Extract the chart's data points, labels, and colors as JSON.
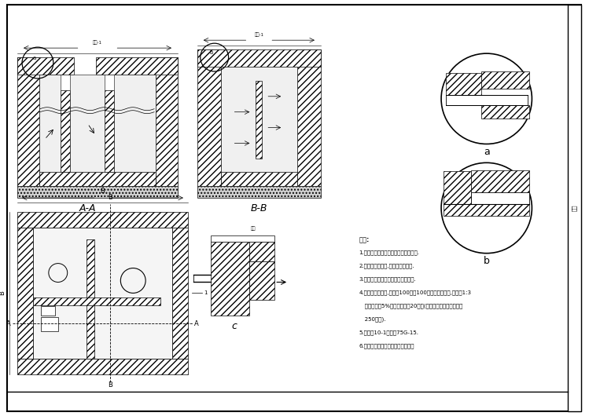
{
  "bg_color": "#ffffff",
  "border_color": "#000000",
  "line_color": "#000000",
  "notes": [
    "说明:",
    "1.本图适用于公共食堂及同类用油建筑.",
    "2.本池应有在室外,池内须定期清除.",
    "3.水箱板及桂板须局部防腐防腐处置.",
    "4.用于有地下水时,混凝用100号或100号太泥沙浆砌砖,内外壁1:3",
    "   水泥沙浆加5%防水剂素荣厚20毫米(外壁抹灰须高于水平线上",
    "   250毫米).",
    "5.地漏用10-1伴装见75G-15.",
    "6.进水管管径及进入方向由设计确定"
  ],
  "label_aa": "A-A",
  "label_bb": "B-B",
  "label_c": "c",
  "label_a": "a",
  "label_b": "b"
}
